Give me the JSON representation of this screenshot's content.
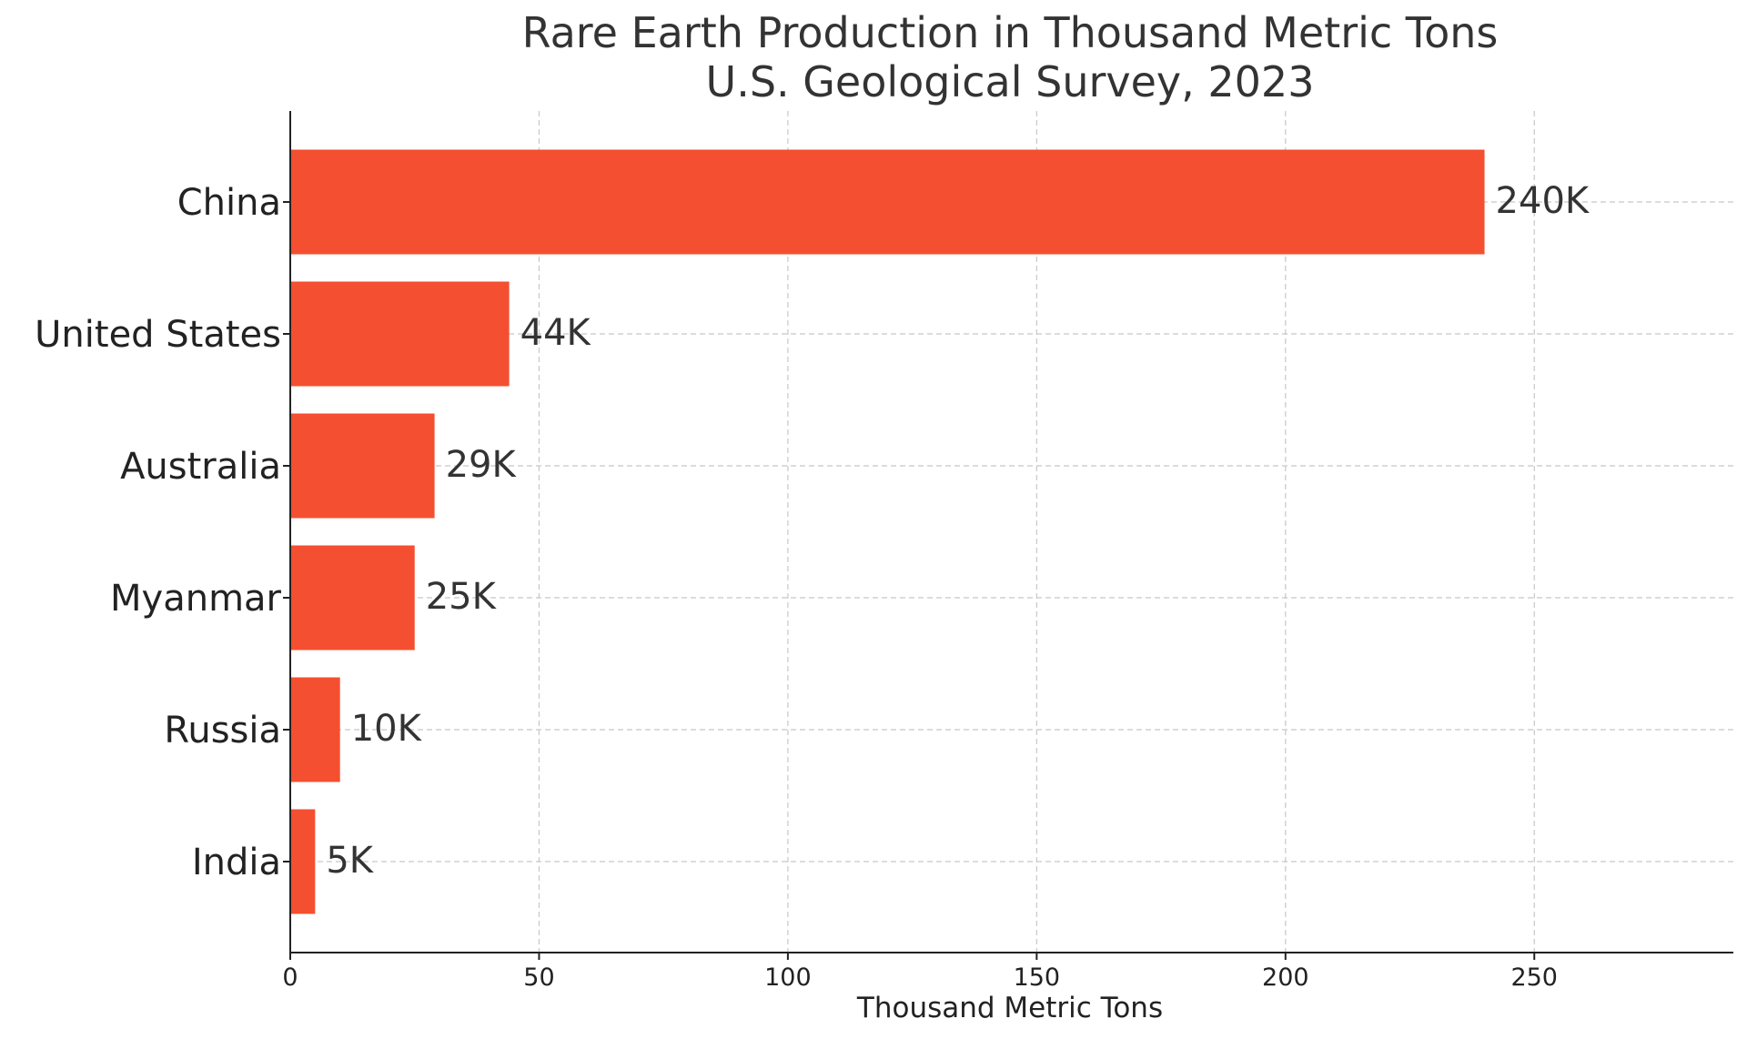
{
  "chart_data": {
    "type": "bar",
    "orientation": "horizontal",
    "title": "Rare Earth Production in Thousand Metric Tons",
    "subtitle": "U.S. Geological Survey, 2023",
    "xlabel": "Thousand Metric Tons",
    "ylabel": "",
    "categories": [
      "China",
      "United States",
      "Australia",
      "Myanmar",
      "Russia",
      "India"
    ],
    "values": [
      240,
      44,
      29,
      25,
      10,
      5
    ],
    "data_labels": [
      "240K",
      "44K",
      "29K",
      "25K",
      "10K",
      "5K"
    ],
    "xlim": [
      0,
      290
    ],
    "xticks": [
      0,
      50,
      100,
      150,
      200,
      250
    ],
    "grid": true,
    "bar_color": "#f44f30"
  }
}
